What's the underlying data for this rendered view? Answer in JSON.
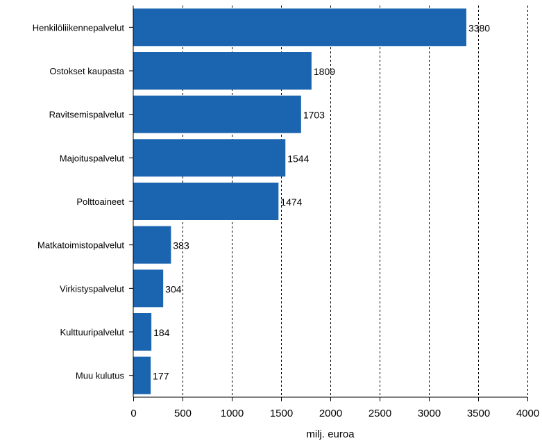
{
  "chart_data": {
    "type": "bar",
    "orientation": "horizontal",
    "categories": [
      "Henkilöliikennepalvelut",
      "Ostokset kaupasta",
      "Ravitsemispalvelut",
      "Majoituspalvelut",
      "Polttoaineet",
      "Matkatoimistopalvelut",
      "Virkistyspalvelut",
      "Kulttuuripalvelut",
      "Muu kulutus"
    ],
    "values": [
      3380,
      1809,
      1703,
      1544,
      1474,
      383,
      304,
      184,
      177
    ],
    "value_labels": [
      "3380",
      "1809",
      "1703",
      "1544",
      "1474",
      "383",
      "304",
      "184",
      "177"
    ],
    "xlabel": "milj. euroa",
    "ylabel": "",
    "xlim": [
      0,
      4000
    ],
    "xticks": [
      "0",
      "500",
      "1000",
      "1500",
      "2000",
      "2500",
      "3000",
      "3500",
      "4000"
    ],
    "grid": "vertical dashed",
    "bar_color": "#1a64b0"
  }
}
